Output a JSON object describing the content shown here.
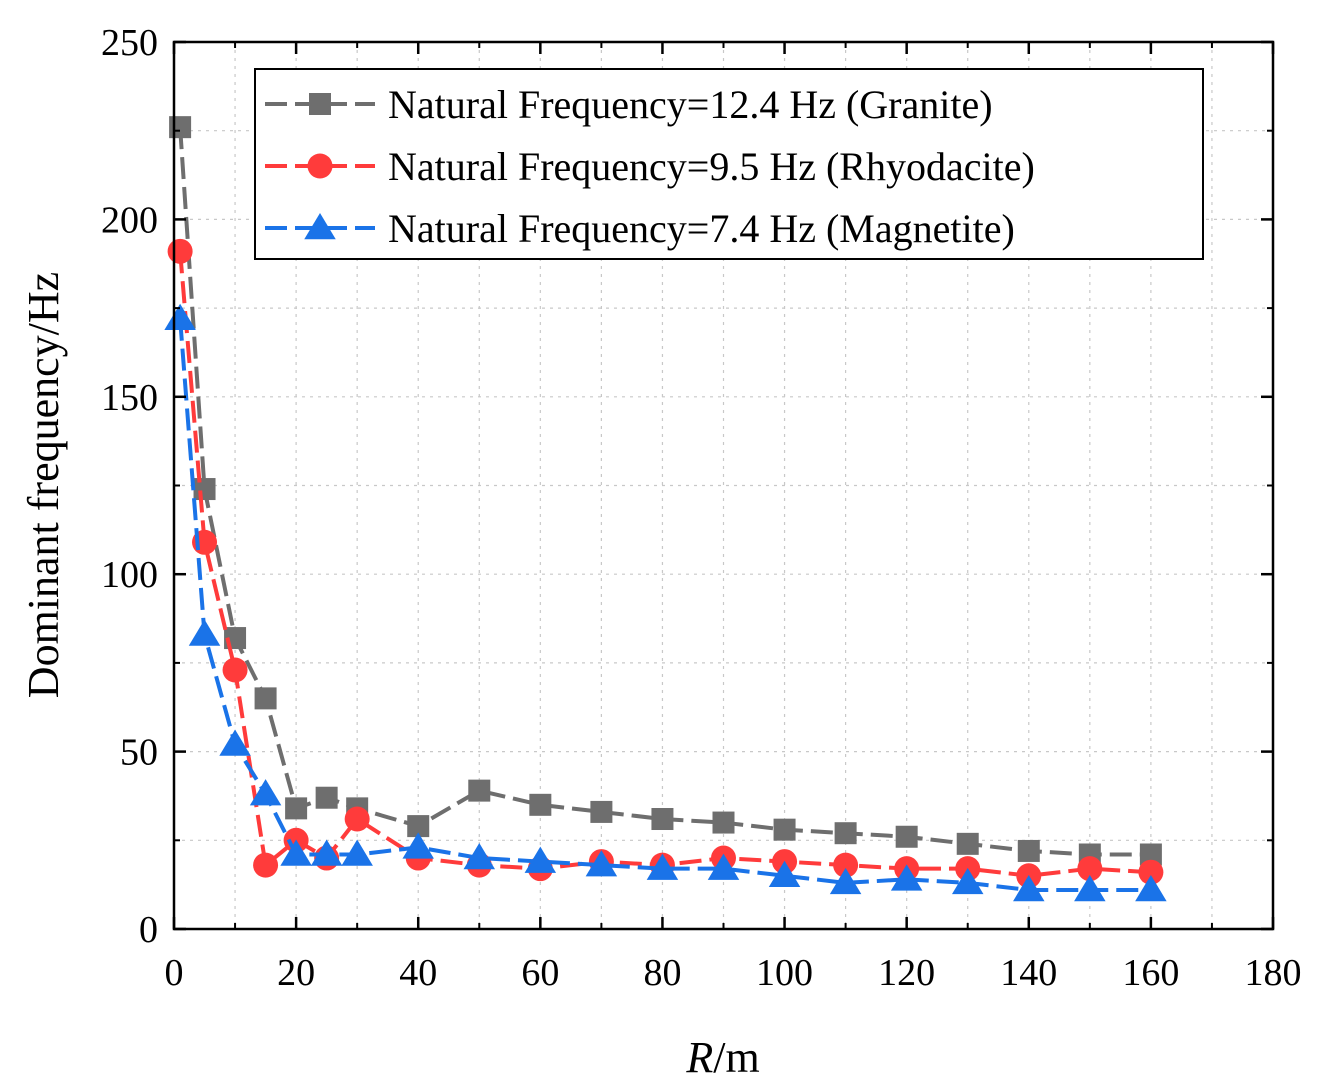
{
  "chart_data": {
    "type": "line",
    "xlabel_italic": "R",
    "xlabel_rest": "/m",
    "ylabel": "Dominant frequency/Hz",
    "xlim": [
      0,
      180
    ],
    "ylim": [
      0,
      250
    ],
    "xticks": [
      "0",
      "20",
      "40",
      "60",
      "80",
      "100",
      "120",
      "140",
      "160",
      "180"
    ],
    "yticks": [
      "0",
      "50",
      "100",
      "150",
      "200",
      "250"
    ],
    "grid": true,
    "legend_position": "top-right",
    "x": [
      1,
      5,
      10,
      15,
      20,
      25,
      30,
      40,
      50,
      60,
      70,
      80,
      90,
      100,
      110,
      120,
      130,
      140,
      150,
      160
    ],
    "series": [
      {
        "name": "Natural Frequency=12.4 Hz (Granite)",
        "color": "#6e6e6e",
        "marker": "square",
        "values": [
          226,
          124,
          82,
          65,
          34,
          37,
          34,
          29,
          39,
          35,
          33,
          31,
          30,
          28,
          27,
          26,
          24,
          22,
          21,
          21
        ]
      },
      {
        "name": "Natural Frequency=9.5 Hz (Rhyodacite)",
        "color": "#ff3b3b",
        "marker": "circle",
        "values": [
          191,
          109,
          73,
          18,
          25,
          20,
          31,
          20,
          18,
          17,
          19,
          18,
          20,
          19,
          18,
          17,
          17,
          15,
          17,
          16
        ]
      },
      {
        "name": "Natural Frequency=7.4 Hz (Magnetite)",
        "color": "#1a73e8",
        "marker": "triangle",
        "values": [
          172,
          83,
          52,
          38,
          21,
          21,
          21,
          23,
          20,
          19,
          18,
          17,
          17,
          15,
          13,
          14,
          13,
          11,
          11,
          11
        ]
      }
    ]
  }
}
